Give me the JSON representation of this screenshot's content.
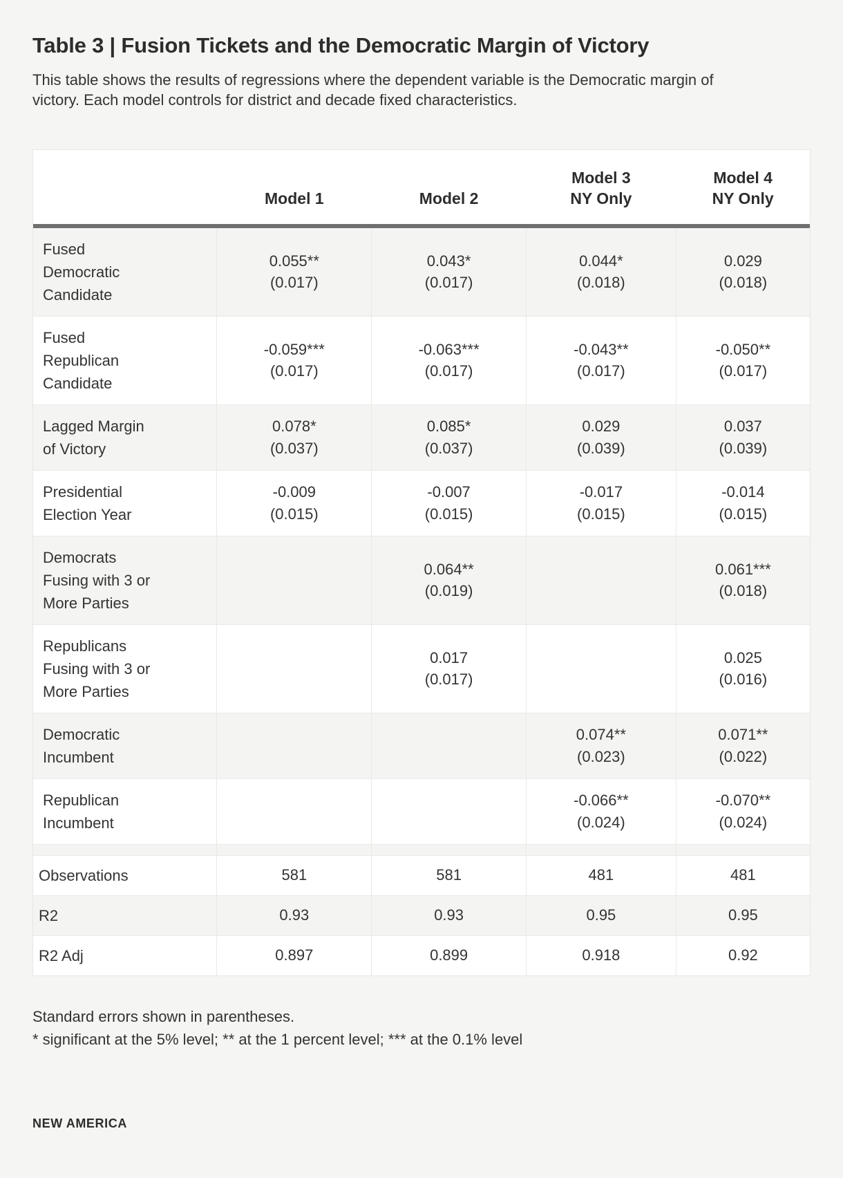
{
  "page": {
    "title": "Table 3 | Fusion Tickets and the Democratic Margin of Victory",
    "description": "This table shows the results of regressions where the dependent variable is the Democratic margin of victory. Each model controls for district and decade fixed characteristics.",
    "footnotes": [
      "Standard errors shown in parentheses.",
      "* significant at the 5% level; ** at the 1 percent level; *** at the 0.1% level"
    ],
    "brand": "NEW AMERICA"
  },
  "colors": {
    "page_background": "#f5f5f3",
    "table_background": "#ffffff",
    "alt_row_background": "#f4f4f2",
    "header_rule": "#6f6f6f",
    "divider": "#e9e9e7",
    "text": "#333333"
  },
  "chart_data": {
    "type": "table",
    "title": "Table 3 | Fusion Tickets and the Democratic Margin of Victory",
    "columns": [
      "",
      "Model 1",
      "Model 2",
      "Model 3 NY Only",
      "Model 4 NY Only"
    ],
    "header_lines": [
      [
        ""
      ],
      [
        "Model 1"
      ],
      [
        "Model 2"
      ],
      [
        "Model 3",
        "NY Only"
      ],
      [
        "Model 4",
        "NY Only"
      ]
    ],
    "rows": [
      {
        "label": "Fused Democratic Candidate",
        "label_lines": [
          "Fused",
          "Democratic",
          "Candidate"
        ],
        "cells": [
          [
            "0.055**",
            "(0.017)"
          ],
          [
            "0.043*",
            "(0.017)"
          ],
          [
            "0.044*",
            "(0.018)"
          ],
          [
            "0.029",
            "(0.018)"
          ]
        ]
      },
      {
        "label": "Fused Republican Candidate",
        "label_lines": [
          "Fused",
          "Republican",
          "Candidate"
        ],
        "cells": [
          [
            "-0.059***",
            "(0.017)"
          ],
          [
            "-0.063***",
            "(0.017)"
          ],
          [
            "-0.043**",
            "(0.017)"
          ],
          [
            "-0.050**",
            "(0.017)"
          ]
        ]
      },
      {
        "label": "Lagged Margin of Victory",
        "label_lines": [
          "Lagged Margin",
          "of Victory"
        ],
        "cells": [
          [
            "0.078*",
            "(0.037)"
          ],
          [
            "0.085*",
            "(0.037)"
          ],
          [
            "0.029",
            "(0.039)"
          ],
          [
            "0.037",
            "(0.039)"
          ]
        ]
      },
      {
        "label": "Presidential Election Year",
        "label_lines": [
          "Presidential",
          "Election Year"
        ],
        "cells": [
          [
            "-0.009",
            "(0.015)"
          ],
          [
            "-0.007",
            "(0.015)"
          ],
          [
            "-0.017",
            "(0.015)"
          ],
          [
            "-0.014",
            "(0.015)"
          ]
        ]
      },
      {
        "label": "Democrats Fusing with 3 or More Parties",
        "label_lines": [
          "Democrats",
          "Fusing with 3 or",
          "More Parties"
        ],
        "cells": [
          [],
          [
            "0.064**",
            "(0.019)"
          ],
          [],
          [
            "0.061***",
            "(0.018)"
          ]
        ]
      },
      {
        "label": "Republicans Fusing with 3 or More Parties",
        "label_lines": [
          "Republicans",
          "Fusing with 3 or",
          "More Parties"
        ],
        "cells": [
          [],
          [
            "0.017",
            "(0.017)"
          ],
          [],
          [
            "0.025",
            "(0.016)"
          ]
        ]
      },
      {
        "label": "Democratic Incumbent",
        "label_lines": [
          "Democratic",
          "Incumbent"
        ],
        "cells": [
          [],
          [],
          [
            "0.074**",
            "(0.023)"
          ],
          [
            "0.071**",
            "(0.022)"
          ]
        ]
      },
      {
        "label": "Republican Incumbent",
        "label_lines": [
          "Republican",
          "Incumbent"
        ],
        "cells": [
          [],
          [],
          [
            "-0.066**",
            "(0.024)"
          ],
          [
            "-0.070**",
            "(0.024)"
          ]
        ]
      }
    ],
    "stat_rows": [
      {
        "label": "Observations",
        "cells": [
          "581",
          "581",
          "481",
          "481"
        ]
      },
      {
        "label": "R2",
        "cells": [
          "0.93",
          "0.93",
          "0.95",
          "0.95"
        ]
      },
      {
        "label": "R2 Adj",
        "cells": [
          "0.897",
          "0.899",
          "0.918",
          "0.92"
        ]
      }
    ]
  }
}
